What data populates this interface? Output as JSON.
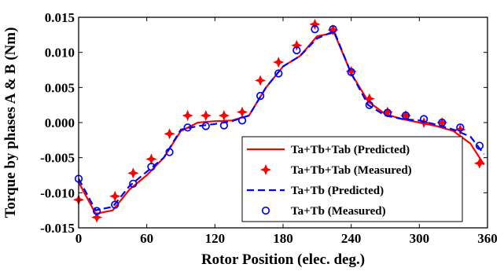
{
  "chart_data": {
    "type": "line",
    "title": "",
    "xlabel": "Rotor Position (elec. deg.)",
    "ylabel": "Torque by phases A & B (Nm)",
    "xlim": [
      0,
      360
    ],
    "ylim": [
      -0.015,
      0.015
    ],
    "xticks": [
      0,
      60,
      120,
      180,
      240,
      300,
      360
    ],
    "xtick_labels": [
      "0",
      "60",
      "120",
      "180",
      "240",
      "300",
      "360"
    ],
    "yticks": [
      -0.015,
      -0.01,
      -0.005,
      0.0,
      0.005,
      0.01,
      0.015
    ],
    "ytick_labels": [
      "-0.015",
      "-0.010",
      "-0.005",
      "0.000",
      "0.005",
      "0.010",
      "0.015"
    ],
    "grid": false,
    "legend_position": "bottom-right",
    "series": [
      {
        "name": "Ta+Tb+Tab (Predicted)",
        "style": "solid-line",
        "color": "#ff0000",
        "x": [
          0,
          15,
          30,
          45,
          60,
          75,
          90,
          105,
          120,
          135,
          150,
          165,
          180,
          195,
          210,
          225,
          240,
          255,
          270,
          285,
          300,
          315,
          330,
          345,
          357
        ],
        "y": [
          -0.0085,
          -0.013,
          -0.0125,
          -0.0095,
          -0.0075,
          -0.005,
          -0.0012,
          0.0,
          0.0002,
          0.0003,
          0.001,
          0.005,
          0.008,
          0.0095,
          0.0123,
          0.0128,
          0.007,
          0.003,
          0.0012,
          0.0005,
          0.0,
          -0.0005,
          -0.0012,
          -0.003,
          -0.006
        ]
      },
      {
        "name": "Ta+Tb+Tab (Measured)",
        "style": "red-star",
        "color": "#ff0000",
        "x": [
          0,
          16,
          32,
          48,
          64,
          80,
          96,
          112,
          128,
          144,
          160,
          176,
          192,
          208,
          224,
          240,
          256,
          272,
          288,
          304,
          320,
          336,
          353
        ],
        "y": [
          -0.011,
          -0.0135,
          -0.0105,
          -0.0072,
          -0.0052,
          -0.0016,
          0.001,
          0.001,
          0.001,
          0.0015,
          0.006,
          0.0086,
          0.011,
          0.014,
          0.0132,
          0.0073,
          0.0034,
          0.0015,
          0.001,
          0.0,
          0.0,
          -0.001,
          -0.0058
        ]
      },
      {
        "name": "Ta+Tb (Predicted)",
        "style": "dashed-line",
        "color": "#0000ff",
        "x": [
          0,
          15,
          30,
          45,
          60,
          75,
          90,
          105,
          120,
          135,
          150,
          165,
          180,
          195,
          210,
          225,
          240,
          255,
          270,
          285,
          300,
          315,
          330,
          345,
          357
        ],
        "y": [
          -0.008,
          -0.0125,
          -0.012,
          -0.009,
          -0.007,
          -0.005,
          -0.001,
          -0.0005,
          -0.0002,
          0.0002,
          0.001,
          0.005,
          0.008,
          0.0095,
          0.012,
          0.013,
          0.007,
          0.0025,
          0.001,
          0.0005,
          0.0003,
          -0.0003,
          -0.001,
          -0.002,
          -0.0045
        ]
      },
      {
        "name": "Ta+Tb (Measured)",
        "style": "blue-circle",
        "color": "#0000ff",
        "x": [
          0,
          16,
          32,
          48,
          64,
          80,
          96,
          112,
          128,
          144,
          160,
          176,
          192,
          208,
          224,
          240,
          256,
          272,
          288,
          304,
          320,
          336,
          353
        ],
        "y": [
          -0.008,
          -0.0126,
          -0.0117,
          -0.0087,
          -0.0063,
          -0.0042,
          -0.0007,
          -0.0005,
          -0.0004,
          0.0003,
          0.0038,
          0.007,
          0.0103,
          0.0133,
          0.0133,
          0.0072,
          0.0025,
          0.0014,
          0.001,
          0.0005,
          0.0,
          -0.0007,
          -0.0033
        ]
      }
    ]
  }
}
